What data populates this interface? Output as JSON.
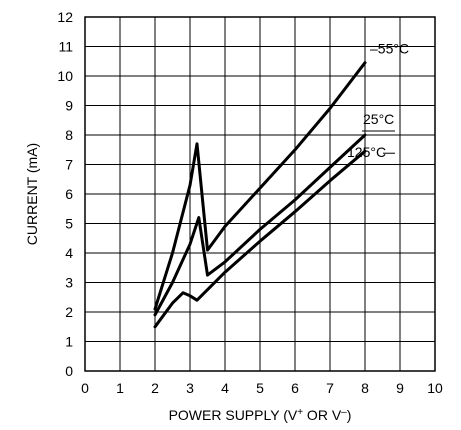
{
  "chart_data": {
    "type": "line",
    "xlabel": "POWER SUPPLY (V",
    "xlabel_sup_plus": "+",
    "xlabel_mid": " OR V",
    "xlabel_sup_minus": "–",
    "xlabel_end": ")",
    "ylabel": "CURRENT (mA)",
    "xlim": [
      0,
      10
    ],
    "ylim": [
      0,
      12
    ],
    "xticks": [
      "0",
      "1",
      "2",
      "3",
      "4",
      "5",
      "6",
      "7",
      "8",
      "9",
      "10"
    ],
    "yticks": [
      "0",
      "1",
      "2",
      "3",
      "4",
      "5",
      "6",
      "7",
      "8",
      "9",
      "10",
      "11",
      "12"
    ],
    "grid": true,
    "series": [
      {
        "name": "–55°C",
        "x": [
          2.0,
          2.5,
          3.0,
          3.2,
          3.5,
          4.0,
          5.0,
          6.0,
          7.0,
          8.0
        ],
        "y": [
          2.1,
          4.0,
          6.3,
          7.7,
          4.1,
          4.9,
          6.2,
          7.5,
          8.9,
          10.45
        ]
      },
      {
        "name": "25°C",
        "x": [
          2.0,
          2.5,
          3.0,
          3.25,
          3.5,
          4.0,
          5.0,
          6.0,
          7.0,
          8.0
        ],
        "y": [
          1.9,
          3.0,
          4.3,
          5.2,
          3.25,
          3.7,
          4.8,
          5.8,
          6.9,
          8.0
        ]
      },
      {
        "name": "125°C",
        "x": [
          2.0,
          2.5,
          2.8,
          3.0,
          3.2,
          4.0,
          5.0,
          6.0,
          7.0,
          8.0
        ],
        "y": [
          1.5,
          2.3,
          2.65,
          2.55,
          2.4,
          3.35,
          4.4,
          5.4,
          6.45,
          7.45
        ]
      }
    ]
  }
}
